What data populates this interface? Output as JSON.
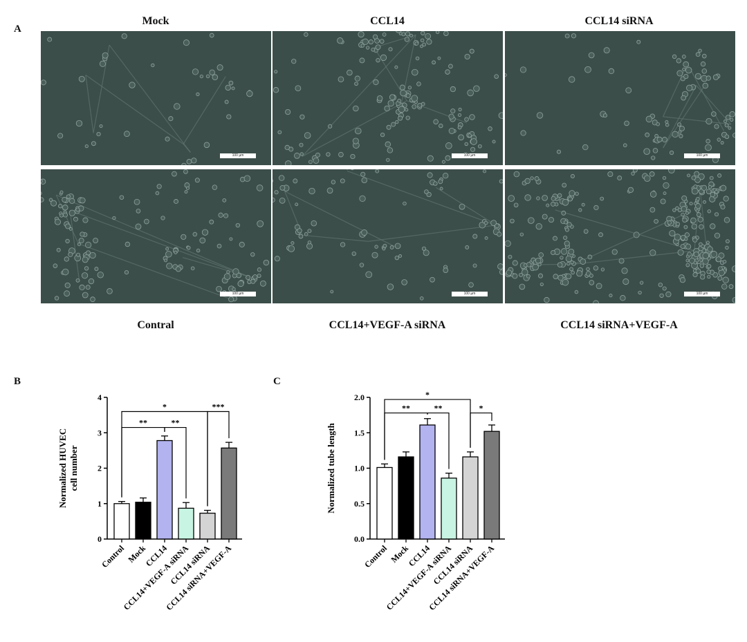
{
  "panel_a": {
    "letter": "A",
    "scale_label": "100 µm",
    "top_labels": [
      "Mock",
      "CCL14",
      "CCL14 siRNA"
    ],
    "bottom_labels": [
      "Contral",
      "CCL14+VEGF-A siRNA",
      "CCL14 siRNA+VEGF-A"
    ],
    "image_tint": "#3c4e4a"
  },
  "panel_b": {
    "letter": "B"
  },
  "panel_c": {
    "letter": "C"
  },
  "chart_data": [
    {
      "type": "bar",
      "categories": [
        "Control",
        "Mock",
        "CCL14",
        "CCL14+VEGF-A siRNA",
        "CCL14 siRNA",
        "CCL14 siRNA+VEGF-A"
      ],
      "values": [
        1.0,
        1.04,
        2.78,
        0.87,
        0.73,
        2.57
      ],
      "errors": [
        0.06,
        0.12,
        0.13,
        0.16,
        0.08,
        0.16
      ],
      "colors": [
        "#ffffff",
        "#000000",
        "#b3b3f0",
        "#c8f5e3",
        "#d4d4d4",
        "#7a7a7a"
      ],
      "ylabel_lines": [
        "Normalized HUVEC",
        "cell number"
      ],
      "ylim": [
        0,
        4
      ],
      "yticks": [
        "0",
        "1",
        "2",
        "3",
        "4"
      ],
      "significance": [
        {
          "from": 0,
          "to": 2,
          "label": "**",
          "y": 3.15
        },
        {
          "from": 2,
          "to": 3,
          "label": "**",
          "y": 3.15
        },
        {
          "from": 0,
          "to": 4,
          "label": "*",
          "y": 3.6
        },
        {
          "from": 4,
          "to": 5,
          "label": "***",
          "y": 3.6
        }
      ]
    },
    {
      "type": "bar",
      "categories": [
        "Control",
        "Mock",
        "CCL14",
        "CCL14+VEGF-A siRNA",
        "CCL14 siRNA",
        "CCL14 siRNA+VEGF-A"
      ],
      "values": [
        1.01,
        1.16,
        1.61,
        0.86,
        1.16,
        1.52
      ],
      "errors": [
        0.05,
        0.07,
        0.09,
        0.07,
        0.07,
        0.09
      ],
      "colors": [
        "#ffffff",
        "#000000",
        "#b3b3f0",
        "#c8f5e3",
        "#d4d4d4",
        "#7a7a7a"
      ],
      "ylabel_lines": [
        "Normalized tube length"
      ],
      "ylim": [
        0,
        2.0
      ],
      "yticks": [
        "0.0",
        "0.5",
        "1.0",
        "1.5",
        "2.0"
      ],
      "significance": [
        {
          "from": 0,
          "to": 2,
          "label": "**",
          "y": 1.78
        },
        {
          "from": 2,
          "to": 3,
          "label": "**",
          "y": 1.78
        },
        {
          "from": 0,
          "to": 4,
          "label": "*",
          "y": 1.97
        },
        {
          "from": 4,
          "to": 5,
          "label": "*",
          "y": 1.78
        }
      ]
    }
  ]
}
